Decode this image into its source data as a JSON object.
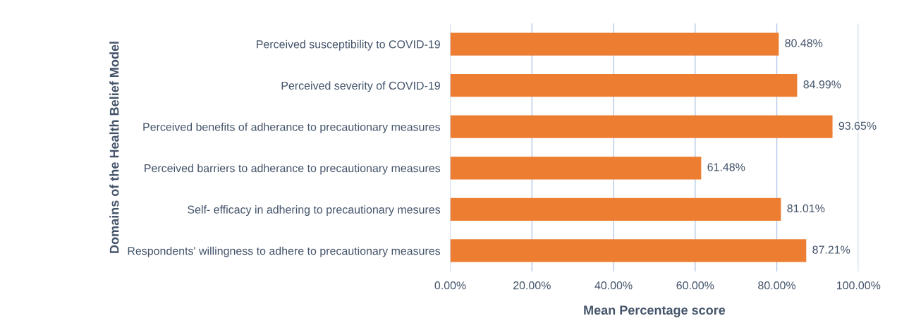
{
  "chart_data": {
    "type": "bar",
    "orientation": "horizontal",
    "ylabel": "Domains of the Health Belief Model",
    "xlabel": "Mean Percentage score",
    "categories": [
      "Perceived susceptibility to COVID-19",
      "Perceived severity of COVID-19",
      "Perceived benefits of adherance to precautionary measures",
      "Perceived barriers to adherance to precautionary measures",
      "Self- efficacy in adhering to precautionary mesures",
      "Respondents' willingness to adhere to precautionary measures"
    ],
    "values": [
      80.48,
      84.99,
      93.65,
      61.48,
      81.01,
      87.21
    ],
    "value_labels": [
      "80.48%",
      "84.99%",
      "93.65%",
      "61.48%",
      "81.01%",
      "87.21%"
    ],
    "color": "#ed7d31",
    "xlim": [
      0,
      100
    ],
    "xticks": [
      {
        "value": 0,
        "label": "0.00%"
      },
      {
        "value": 20,
        "label": "20.00%"
      },
      {
        "value": 40,
        "label": "40.00%"
      },
      {
        "value": 60,
        "label": "60.00%"
      },
      {
        "value": 80,
        "label": "80.00%"
      },
      {
        "value": 100,
        "label": "100.00%"
      }
    ],
    "grid": "x",
    "legend": false
  }
}
